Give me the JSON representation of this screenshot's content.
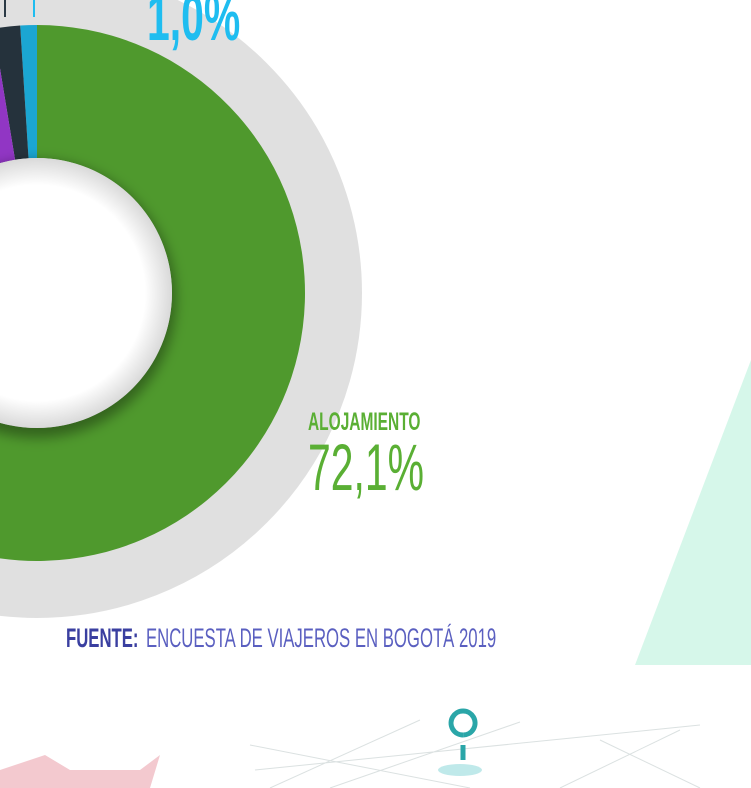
{
  "chart_data": {
    "type": "pie",
    "categories": [
      "ALOJAMIENTO",
      null,
      null,
      null
    ],
    "values": [
      72.1,
      1.0,
      1.6,
      3.0
    ],
    "value_labels": [
      "72,1%",
      "1,0%",
      null,
      null
    ],
    "colors": [
      "#5aaf34",
      "#1fbdf0",
      "#2b3a45",
      "#a63ee0"
    ]
  },
  "source": {
    "label": "FUENTE:",
    "text": "ENCUESTA DE VIAJEROS EN BOGOTÁ 2019"
  }
}
